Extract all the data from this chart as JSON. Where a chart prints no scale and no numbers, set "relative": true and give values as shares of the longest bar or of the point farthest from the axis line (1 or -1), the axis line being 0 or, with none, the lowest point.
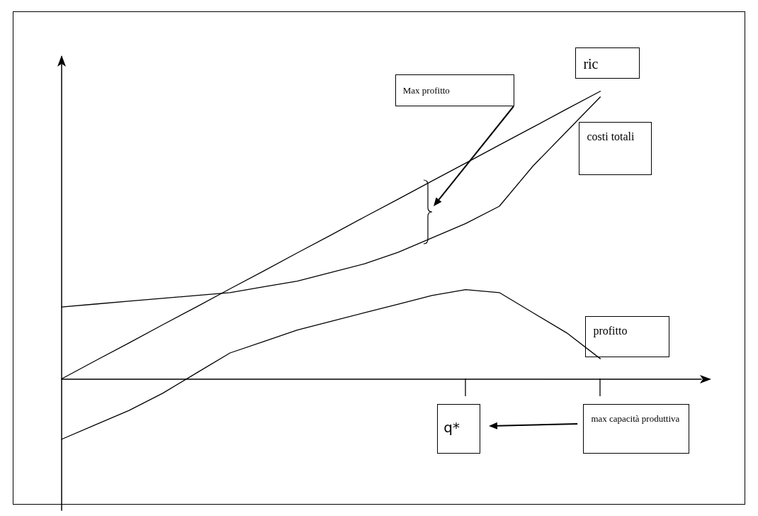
{
  "chart_data": {
    "type": "line",
    "relative": true,
    "categories": [
      null,
      null,
      null,
      null,
      null,
      null,
      null,
      null,
      null,
      null,
      null,
      null,
      null,
      null,
      null,
      null,
      null,
      null,
      null,
      null
    ],
    "grid": false,
    "legend": false,
    "marker": "none",
    "line_style": "solid",
    "series": [
      {
        "name": "ric",
        "color": "#000000",
        "values": [
          0,
          0.063,
          0.125,
          0.188,
          0.25,
          0.313,
          0.375,
          0.438,
          0.5,
          0.563,
          0.625,
          0.688,
          0.75,
          0.813,
          0.875,
          0.938,
          1,
          null,
          null,
          null
        ]
      },
      {
        "name": "costi totali",
        "color": "#000000",
        "values": [
          0.25,
          0.26,
          0.27,
          0.28,
          0.29,
          0.3,
          0.32,
          0.34,
          0.37,
          0.4,
          0.44,
          0.49,
          0.54,
          0.6,
          0.74,
          0.86,
          0.98,
          null,
          null,
          null
        ]
      },
      {
        "name": "profitto",
        "color": "#000000",
        "values": [
          -0.21,
          -0.16,
          -0.11,
          -0.05,
          0.02,
          0.09,
          0.13,
          0.17,
          0.2,
          0.23,
          0.26,
          0.29,
          0.31,
          0.3,
          0.23,
          0.16,
          0.07,
          null,
          null,
          null
        ]
      }
    ],
    "annotations": [
      "Max profitto",
      "q*",
      "max capacità produttiva"
    ]
  }
}
